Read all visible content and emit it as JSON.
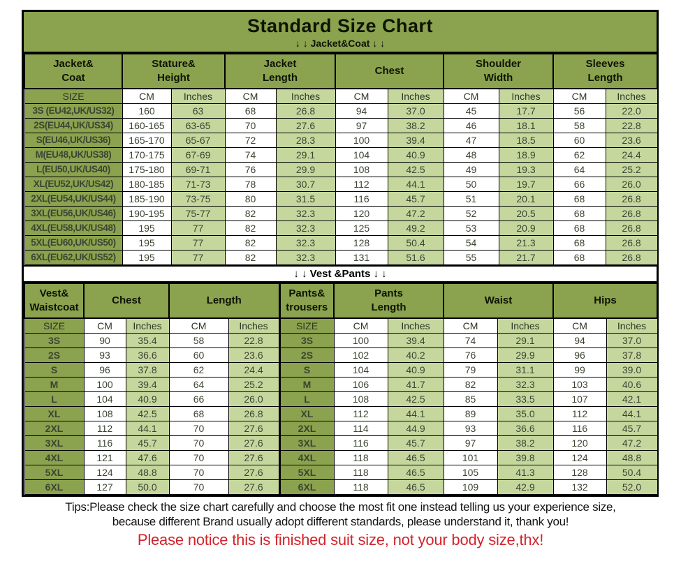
{
  "title": "Standard Size Chart",
  "jacket_section_label": "↓ ↓  Jacket&Coat ↓ ↓",
  "vest_section_label": "↓ ↓  Vest &Pants ↓ ↓",
  "colors": {
    "olive": "#8ba24e",
    "light_green": "#c6d79e",
    "red": "#d2232a",
    "border": "#000000"
  },
  "jacket_table": {
    "group_headers": [
      "Jacket&\nCoat",
      "Stature&\nHeight",
      "Jacket\nLength",
      "Chest",
      "Shoulder\nWidth",
      "Sleeves\nLength"
    ],
    "unit_headers": [
      "SIZE",
      "CM",
      "Inches",
      "CM",
      "Inches",
      "CM",
      "Inches",
      "CM",
      "Inches",
      "CM",
      "Inches"
    ],
    "rows": [
      [
        "3S (EU42,UK/US32)",
        "160",
        "63",
        "68",
        "26.8",
        "94",
        "37.0",
        "45",
        "17.7",
        "56",
        "22.0"
      ],
      [
        "2S(EU44,UK/US34)",
        "160-165",
        "63-65",
        "70",
        "27.6",
        "97",
        "38.2",
        "46",
        "18.1",
        "58",
        "22.8"
      ],
      [
        "S(EU46,UK/US36)",
        "165-170",
        "65-67",
        "72",
        "28.3",
        "100",
        "39.4",
        "47",
        "18.5",
        "60",
        "23.6"
      ],
      [
        "M(EU48,UK/US38)",
        "170-175",
        "67-69",
        "74",
        "29.1",
        "104",
        "40.9",
        "48",
        "18.9",
        "62",
        "24.4"
      ],
      [
        "L(EU50,UK/US40)",
        "175-180",
        "69-71",
        "76",
        "29.9",
        "108",
        "42.5",
        "49",
        "19.3",
        "64",
        "25.2"
      ],
      [
        "XL(EU52,UK/US42)",
        "180-185",
        "71-73",
        "78",
        "30.7",
        "112",
        "44.1",
        "50",
        "19.7",
        "66",
        "26.0"
      ],
      [
        "2XL(EU54,UK/US44)",
        "185-190",
        "73-75",
        "80",
        "31.5",
        "116",
        "45.7",
        "51",
        "20.1",
        "68",
        "26.8"
      ],
      [
        "3XL(EU56,UK/US46)",
        "190-195",
        "75-77",
        "82",
        "32.3",
        "120",
        "47.2",
        "52",
        "20.5",
        "68",
        "26.8"
      ],
      [
        "4XL(EU58,UK/US48)",
        "195",
        "77",
        "82",
        "32.3",
        "125",
        "49.2",
        "53",
        "20.9",
        "68",
        "26.8"
      ],
      [
        "5XL(EU60,UK/US50)",
        "195",
        "77",
        "82",
        "32.3",
        "128",
        "50.4",
        "54",
        "21.3",
        "68",
        "26.8"
      ],
      [
        "6XL(EU62,UK/US52)",
        "195",
        "77",
        "82",
        "32.3",
        "131",
        "51.6",
        "55",
        "21.7",
        "68",
        "26.8"
      ]
    ]
  },
  "vest_pants_table": {
    "group_headers": [
      "Vest&\nWaistcoat",
      "Chest",
      "Length",
      "Pants&\ntrousers",
      "Pants\nLength",
      "Waist",
      "Hips"
    ],
    "unit_headers": [
      "SIZE",
      "CM",
      "Inches",
      "CM",
      "Inches",
      "SIZE",
      "CM",
      "Inches",
      "CM",
      "Inches",
      "CM",
      "Inches"
    ],
    "rows": [
      [
        "3S",
        "90",
        "35.4",
        "58",
        "22.8",
        "3S",
        "100",
        "39.4",
        "74",
        "29.1",
        "94",
        "37.0"
      ],
      [
        "2S",
        "93",
        "36.6",
        "60",
        "23.6",
        "2S",
        "102",
        "40.2",
        "76",
        "29.9",
        "96",
        "37.8"
      ],
      [
        "S",
        "96",
        "37.8",
        "62",
        "24.4",
        "S",
        "104",
        "40.9",
        "79",
        "31.1",
        "99",
        "39.0"
      ],
      [
        "M",
        "100",
        "39.4",
        "64",
        "25.2",
        "M",
        "106",
        "41.7",
        "82",
        "32.3",
        "103",
        "40.6"
      ],
      [
        "L",
        "104",
        "40.9",
        "66",
        "26.0",
        "L",
        "108",
        "42.5",
        "85",
        "33.5",
        "107",
        "42.1"
      ],
      [
        "XL",
        "108",
        "42.5",
        "68",
        "26.8",
        "XL",
        "112",
        "44.1",
        "89",
        "35.0",
        "112",
        "44.1"
      ],
      [
        "2XL",
        "112",
        "44.1",
        "70",
        "27.6",
        "2XL",
        "114",
        "44.9",
        "93",
        "36.6",
        "116",
        "45.7"
      ],
      [
        "3XL",
        "116",
        "45.7",
        "70",
        "27.6",
        "3XL",
        "116",
        "45.7",
        "97",
        "38.2",
        "120",
        "47.2"
      ],
      [
        "4XL",
        "121",
        "47.6",
        "70",
        "27.6",
        "4XL",
        "118",
        "46.5",
        "101",
        "39.8",
        "124",
        "48.8"
      ],
      [
        "5XL",
        "124",
        "48.8",
        "70",
        "27.6",
        "5XL",
        "118",
        "46.5",
        "105",
        "41.3",
        "128",
        "50.4"
      ],
      [
        "6XL",
        "127",
        "50.0",
        "70",
        "27.6",
        "6XL",
        "118",
        "46.5",
        "109",
        "42.9",
        "132",
        "52.0"
      ]
    ]
  },
  "tips": {
    "line1": "Tips:Please check the size chart carefully and choose the most fit one instead telling us your experience size,",
    "line2": "because different Brand usually adopt different standards, please understand it, thank you!",
    "notice": "Please notice this is finished suit size, not your body size,thx!"
  }
}
